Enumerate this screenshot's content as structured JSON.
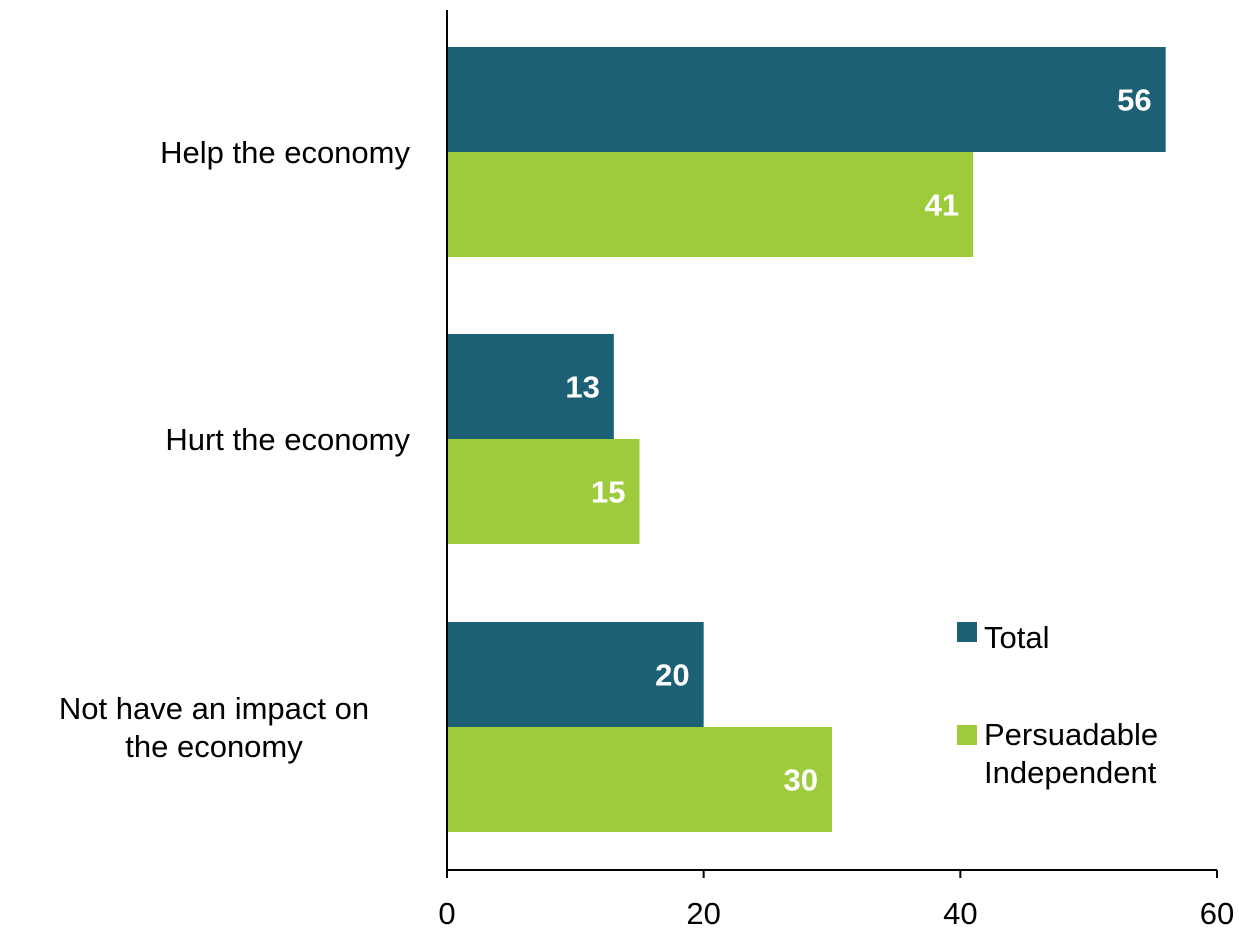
{
  "chart_data": {
    "type": "bar",
    "orientation": "horizontal",
    "categories": [
      [
        "Help the economy"
      ],
      [
        "Hurt the economy"
      ],
      [
        "Not have an impact on",
        "the economy"
      ]
    ],
    "series": [
      {
        "name": "Total",
        "values": [
          56,
          13,
          20
        ],
        "color": "#1b6075"
      },
      {
        "name": "Persuadable Independent",
        "legend_lines": [
          "Persuadable",
          "Independent"
        ],
        "values": [
          41,
          15,
          30
        ],
        "color": "#9ecb3c"
      }
    ],
    "xlim": [
      0,
      60
    ],
    "xticks": [
      "0",
      "20",
      "40",
      "60"
    ],
    "grid": false,
    "legend_position": "bottom-right",
    "axis_color": "#000000"
  }
}
